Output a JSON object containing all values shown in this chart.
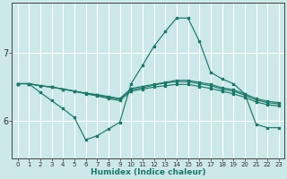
{
  "xlabel": "Humidex (Indice chaleur)",
  "bg_color": "#cce8e8",
  "line_color": "#1a7a6a",
  "grid_color": "#ffffff",
  "xlim": [
    -0.5,
    23.5
  ],
  "ylim": [
    5.45,
    7.75
  ],
  "x_ticks": [
    0,
    1,
    2,
    3,
    4,
    5,
    6,
    7,
    8,
    9,
    10,
    11,
    12,
    13,
    14,
    15,
    16,
    17,
    18,
    19,
    20,
    21,
    22,
    23
  ],
  "y_ticks": [
    6,
    7
  ],
  "series_main": [
    6.55,
    6.55,
    6.42,
    6.3,
    6.18,
    6.05,
    5.72,
    5.78,
    5.88,
    5.98,
    6.55,
    6.82,
    7.1,
    7.32,
    7.52,
    7.52,
    7.18,
    6.72,
    6.62,
    6.55,
    6.4,
    5.95,
    5.9,
    5.9
  ],
  "series_flat1": [
    6.55,
    6.55,
    6.52,
    6.5,
    6.47,
    6.44,
    6.4,
    6.37,
    6.33,
    6.3,
    6.44,
    6.47,
    6.5,
    6.52,
    6.54,
    6.54,
    6.51,
    6.48,
    6.44,
    6.4,
    6.35,
    6.28,
    6.24,
    6.22
  ],
  "series_flat2": [
    6.55,
    6.55,
    6.52,
    6.5,
    6.47,
    6.44,
    6.41,
    6.38,
    6.35,
    6.32,
    6.46,
    6.49,
    6.53,
    6.56,
    6.58,
    6.58,
    6.55,
    6.52,
    6.47,
    6.44,
    6.38,
    6.31,
    6.27,
    6.25
  ],
  "series_flat3": [
    6.55,
    6.55,
    6.52,
    6.5,
    6.47,
    6.44,
    6.41,
    6.39,
    6.36,
    6.33,
    6.48,
    6.51,
    6.54,
    6.57,
    6.6,
    6.6,
    6.57,
    6.54,
    6.49,
    6.46,
    6.4,
    6.33,
    6.29,
    6.27
  ]
}
